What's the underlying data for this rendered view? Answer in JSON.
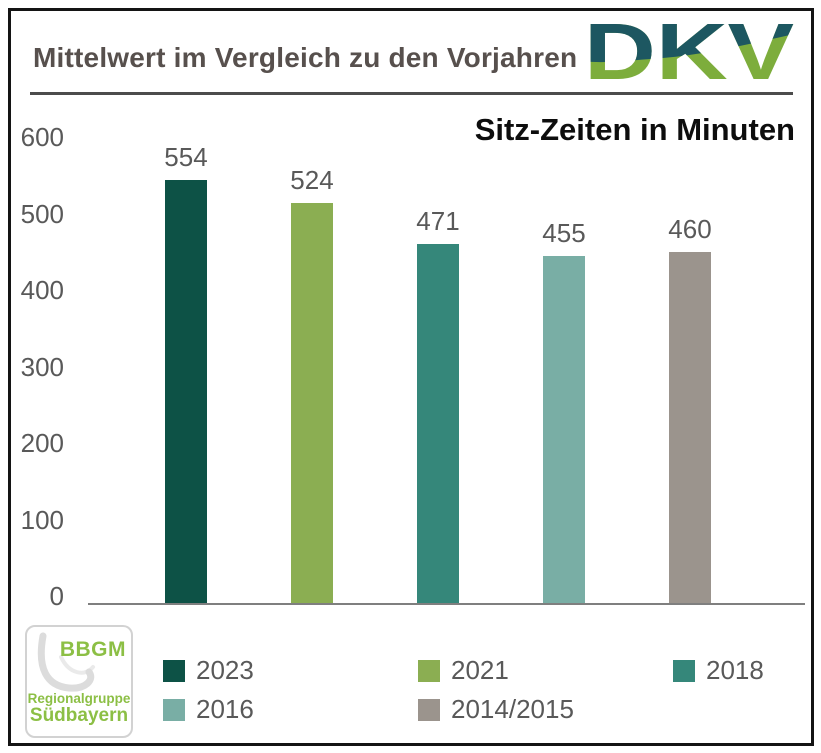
{
  "header": {
    "title": "Mittelwert im Vergleich zu den Vorjahren",
    "logo_text": "DKV"
  },
  "chart_data": {
    "type": "bar",
    "title": "Sitz-Zeiten in Minuten",
    "categories": [
      "2023",
      "2021",
      "2018",
      "2016",
      "2014/2015"
    ],
    "values": [
      554,
      524,
      471,
      455,
      460
    ],
    "bar_colors": [
      "#0d5246",
      "#8bae52",
      "#35877a",
      "#79aea5",
      "#9b948d"
    ],
    "xlabel": "",
    "ylabel": "",
    "ylim": [
      0,
      600
    ],
    "yticks": [
      0,
      100,
      200,
      300,
      400,
      500,
      600
    ],
    "grid": false,
    "legend_position": "bottom"
  },
  "footer_logo": {
    "name": "BBGM",
    "line2": "Regionalgruppe",
    "line3": "Südbayern"
  },
  "colors": {
    "dkv_petrol": "#1d5761",
    "dkv_green": "#7dad3c",
    "bbgm_green": "#8cbf45",
    "bbgm_swoosh": "#dcdcdc",
    "header_text": "#57504d",
    "axis_text": "#595959"
  }
}
